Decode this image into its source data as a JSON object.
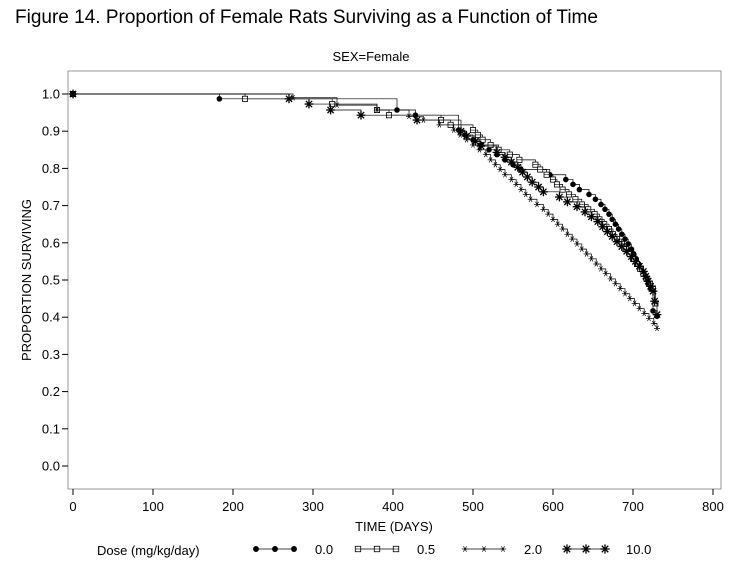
{
  "figure_title": "Figure 14. Proportion of Female Rats Surviving as a Function of Time",
  "chart_data": {
    "type": "line",
    "subtitle": "SEX=Female",
    "xlabel": "TIME (DAYS)",
    "ylabel": "PROPORTION SURVIVING",
    "xlim": [
      0,
      800
    ],
    "ylim": [
      0.0,
      1.0
    ],
    "x_ticks": [
      0,
      100,
      200,
      300,
      400,
      500,
      600,
      700,
      800
    ],
    "y_ticks": [
      "0.0",
      "0.1",
      "0.2",
      "0.3",
      "0.4",
      "0.5",
      "0.6",
      "0.7",
      "0.8",
      "0.9",
      "1.0"
    ],
    "grid": false,
    "legend_position": "bottom",
    "legend_title": "Dose  (mg/kg/day)",
    "step": true,
    "series": [
      {
        "name": "0.0",
        "marker": "dot",
        "points": [
          [
            0,
            1.0
          ],
          [
            183,
            0.987
          ],
          [
            405,
            0.957
          ],
          [
            428,
            0.943
          ],
          [
            482,
            0.903
          ],
          [
            490,
            0.89
          ],
          [
            500,
            0.877
          ],
          [
            510,
            0.863
          ],
          [
            520,
            0.85
          ],
          [
            530,
            0.837
          ],
          [
            540,
            0.823
          ],
          [
            550,
            0.81
          ],
          [
            560,
            0.797
          ],
          [
            596,
            0.783
          ],
          [
            616,
            0.77
          ],
          [
            625,
            0.757
          ],
          [
            633,
            0.743
          ],
          [
            645,
            0.73
          ],
          [
            653,
            0.717
          ],
          [
            660,
            0.703
          ],
          [
            665,
            0.69
          ],
          [
            670,
            0.677
          ],
          [
            674,
            0.663
          ],
          [
            678,
            0.65
          ],
          [
            682,
            0.637
          ],
          [
            686,
            0.623
          ],
          [
            690,
            0.61
          ],
          [
            694,
            0.597
          ],
          [
            698,
            0.583
          ],
          [
            701,
            0.57
          ],
          [
            704,
            0.557
          ],
          [
            707,
            0.543
          ],
          [
            710,
            0.53
          ],
          [
            713,
            0.517
          ],
          [
            716,
            0.503
          ],
          [
            719,
            0.49
          ],
          [
            722,
            0.477
          ],
          [
            725,
            0.417
          ],
          [
            730,
            0.403
          ]
        ],
        "end_x": 730
      },
      {
        "name": "0.5",
        "marker": "square",
        "points": [
          [
            0,
            1.0
          ],
          [
            215,
            0.987
          ],
          [
            324,
            0.973
          ],
          [
            380,
            0.957
          ],
          [
            395,
            0.943
          ],
          [
            460,
            0.93
          ],
          [
            472,
            0.917
          ],
          [
            500,
            0.903
          ],
          [
            506,
            0.89
          ],
          [
            512,
            0.877
          ],
          [
            522,
            0.863
          ],
          [
            532,
            0.85
          ],
          [
            546,
            0.837
          ],
          [
            558,
            0.823
          ],
          [
            578,
            0.81
          ],
          [
            584,
            0.797
          ],
          [
            592,
            0.783
          ],
          [
            600,
            0.77
          ],
          [
            605,
            0.757
          ],
          [
            612,
            0.743
          ],
          [
            620,
            0.73
          ],
          [
            628,
            0.717
          ],
          [
            636,
            0.703
          ],
          [
            644,
            0.69
          ],
          [
            652,
            0.677
          ],
          [
            658,
            0.663
          ],
          [
            664,
            0.65
          ],
          [
            670,
            0.637
          ],
          [
            675,
            0.623
          ],
          [
            680,
            0.61
          ],
          [
            686,
            0.597
          ],
          [
            691,
            0.583
          ],
          [
            696,
            0.57
          ],
          [
            700,
            0.557
          ],
          [
            705,
            0.543
          ],
          [
            709,
            0.53
          ],
          [
            713,
            0.517
          ],
          [
            717,
            0.503
          ],
          [
            721,
            0.49
          ],
          [
            725,
            0.477
          ],
          [
            728,
            0.437
          ]
        ],
        "end_x": 730
      },
      {
        "name": "2.0",
        "marker": "asterisk",
        "points": [
          [
            0,
            1.0
          ],
          [
            275,
            0.99
          ],
          [
            330,
            0.97
          ],
          [
            380,
            0.957
          ],
          [
            420,
            0.94
          ],
          [
            438,
            0.93
          ],
          [
            458,
            0.917
          ],
          [
            476,
            0.903
          ],
          [
            484,
            0.89
          ],
          [
            492,
            0.877
          ],
          [
            500,
            0.863
          ],
          [
            508,
            0.85
          ],
          [
            516,
            0.837
          ],
          [
            522,
            0.823
          ],
          [
            528,
            0.81
          ],
          [
            534,
            0.797
          ],
          [
            540,
            0.783
          ],
          [
            548,
            0.77
          ],
          [
            554,
            0.757
          ],
          [
            560,
            0.743
          ],
          [
            566,
            0.73
          ],
          [
            572,
            0.717
          ],
          [
            580,
            0.703
          ],
          [
            588,
            0.69
          ],
          [
            594,
            0.677
          ],
          [
            600,
            0.663
          ],
          [
            606,
            0.65
          ],
          [
            612,
            0.637
          ],
          [
            618,
            0.623
          ],
          [
            624,
            0.61
          ],
          [
            630,
            0.597
          ],
          [
            636,
            0.583
          ],
          [
            642,
            0.57
          ],
          [
            648,
            0.557
          ],
          [
            654,
            0.543
          ],
          [
            660,
            0.53
          ],
          [
            666,
            0.517
          ],
          [
            672,
            0.503
          ],
          [
            678,
            0.49
          ],
          [
            684,
            0.477
          ],
          [
            690,
            0.463
          ],
          [
            696,
            0.45
          ],
          [
            702,
            0.437
          ],
          [
            708,
            0.423
          ],
          [
            714,
            0.41
          ],
          [
            720,
            0.397
          ],
          [
            726,
            0.383
          ],
          [
            730,
            0.37
          ]
        ],
        "end_x": 730
      },
      {
        "name": "10.0",
        "marker": "star",
        "points": [
          [
            0,
            1.0
          ],
          [
            270,
            0.987
          ],
          [
            295,
            0.973
          ],
          [
            322,
            0.957
          ],
          [
            360,
            0.943
          ],
          [
            430,
            0.93
          ],
          [
            485,
            0.9
          ],
          [
            492,
            0.887
          ],
          [
            503,
            0.873
          ],
          [
            510,
            0.86
          ],
          [
            530,
            0.843
          ],
          [
            540,
            0.83
          ],
          [
            548,
            0.817
          ],
          [
            556,
            0.803
          ],
          [
            562,
            0.79
          ],
          [
            568,
            0.777
          ],
          [
            574,
            0.763
          ],
          [
            582,
            0.75
          ],
          [
            588,
            0.737
          ],
          [
            608,
            0.723
          ],
          [
            618,
            0.71
          ],
          [
            630,
            0.697
          ],
          [
            640,
            0.683
          ],
          [
            648,
            0.67
          ],
          [
            656,
            0.657
          ],
          [
            662,
            0.643
          ],
          [
            668,
            0.63
          ],
          [
            674,
            0.617
          ],
          [
            680,
            0.603
          ],
          [
            686,
            0.59
          ],
          [
            692,
            0.577
          ],
          [
            698,
            0.563
          ],
          [
            703,
            0.55
          ],
          [
            708,
            0.537
          ],
          [
            713,
            0.523
          ],
          [
            716,
            0.51
          ],
          [
            719,
            0.497
          ],
          [
            722,
            0.483
          ],
          [
            725,
            0.47
          ],
          [
            727,
            0.443
          ],
          [
            730,
            0.407
          ]
        ],
        "end_x": 730
      }
    ]
  }
}
